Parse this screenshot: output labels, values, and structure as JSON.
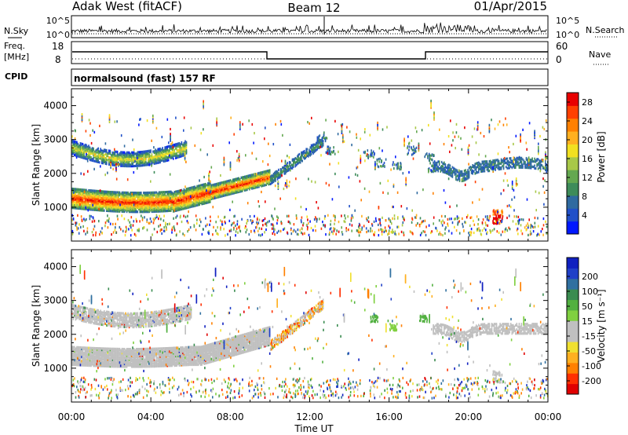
{
  "header": {
    "station": "Adak West (fitACF)",
    "beam": "Beam 12",
    "date": "01/Apr/2015"
  },
  "strip_labels": {
    "nsky": "N.Sky",
    "nsky_ticks": [
      "10^5",
      "10^0"
    ],
    "nsearch": "N.Search",
    "nsearch_ticks": [
      "10^5",
      "10^0"
    ],
    "freq_line1": "Freq.",
    "freq_line2": "[MHz]",
    "freq_ticks": [
      "18",
      "8"
    ],
    "nave_ticks": [
      "60",
      "0"
    ],
    "nave": "Nave",
    "cpid": "CPID",
    "cpid_text": "normalsound (fast) 157 RF"
  },
  "axes": {
    "ylabel": "Slant Range [km]",
    "xlabel": "Time UT",
    "xticks": [
      "00:00",
      "04:00",
      "08:00",
      "12:00",
      "16:00",
      "20:00",
      "00:00"
    ],
    "yticks": [
      "4000",
      "3000",
      "2000",
      "1000"
    ]
  },
  "power_bar": {
    "label": "Power [dB]",
    "ticks": [
      "28",
      "24",
      "20",
      "16",
      "12",
      "8",
      "4"
    ],
    "colors": [
      "#0018ff",
      "#2050c8",
      "#2f6aa0",
      "#3e8c5a",
      "#64a850",
      "#a8c848",
      "#f2e020",
      "#ffb020",
      "#ff8000",
      "#ff4000",
      "#e80000"
    ]
  },
  "velocity_bar": {
    "label": "Velocity [m s⁻¹]",
    "ticks": [
      "200",
      "100",
      "50",
      "15",
      "-15",
      "-50",
      "-100",
      "-200"
    ],
    "colors": [
      "#1020c0",
      "#2040c8",
      "#3070a0",
      "#3a8c50",
      "#52b040",
      "#80d040",
      "#c0c0c0",
      "#c0c0c0",
      "#f0e030",
      "#ffb020",
      "#ff8000",
      "#ff3000",
      "#e00000"
    ]
  },
  "chart_data": [
    {
      "type": "heatmap",
      "title": "Power",
      "xlabel": "Time UT",
      "ylabel": "Slant Range [km]",
      "xlim": [
        0,
        24
      ],
      "ylim": [
        0,
        4500
      ],
      "colorbar": {
        "label": "Power [dB]",
        "range": [
          0,
          30
        ]
      },
      "features": [
        {
          "name": "lower band",
          "start_hour": 0,
          "end_hour": 10,
          "range_km_start": 1150,
          "range_km_end": 2050,
          "power_db": 30
        },
        {
          "name": "upper band",
          "start_hour": 0,
          "end_hour": 5.8,
          "range_km_start": 2800,
          "range_km_end": 2550,
          "power_db": 18
        },
        {
          "name": "post-noon band",
          "start_hour": 10,
          "end_hour": 12.7,
          "range_km_start": 1900,
          "range_km_end": 3000,
          "power_db": 8
        },
        {
          "name": "evening band",
          "start_hour": 18.3,
          "end_hour": 24,
          "range_km_start": 2200,
          "range_km_end": 2300,
          "power_db": 6
        },
        {
          "name": "late blob",
          "start_hour": 21.4,
          "end_hour": 21.4,
          "range_km_start": 700,
          "range_km_end": 700,
          "power_db": 30
        }
      ]
    },
    {
      "type": "heatmap",
      "title": "Velocity",
      "xlabel": "Time UT",
      "ylabel": "Slant Range [km]",
      "xlim": [
        0,
        24
      ],
      "ylim": [
        0,
        4500
      ],
      "colorbar": {
        "label": "Velocity [m s⁻¹]",
        "range": [
          -200,
          200
        ]
      },
      "features": [
        {
          "name": "ground scatter band",
          "start_hour": 0,
          "end_hour": 10,
          "range_km_start": 1300,
          "range_km_end": 2000,
          "velocity": 0
        },
        {
          "name": "upper band",
          "start_hour": 0,
          "end_hour": 6,
          "range_km_start": 2700,
          "range_km_end": 2500,
          "velocity": 0
        },
        {
          "name": "evening band",
          "start_hour": 18.3,
          "end_hour": 24,
          "range_km_start": 2200,
          "range_km_end": 2100,
          "velocity": 0
        }
      ]
    }
  ]
}
